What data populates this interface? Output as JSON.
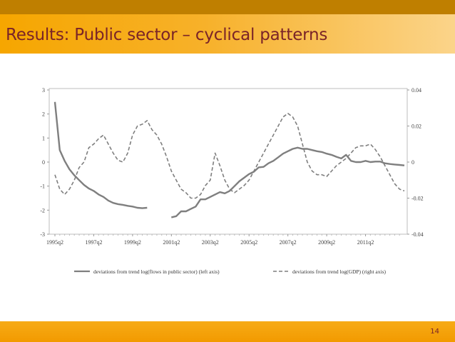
{
  "slide": {
    "title": "Results: Public sector – cyclical patterns",
    "page_number": "14"
  },
  "colors": {
    "header_dark": "#bf7f00",
    "header_light": "#f6a600",
    "title_text": "#7a2428",
    "flows_line": "#7f7f7f",
    "gdp_line": "#7f7f7f"
  },
  "chart_data": {
    "type": "line",
    "left_axis": {
      "ylim": [
        -3,
        3
      ],
      "ticks": [
        "3",
        "2",
        "1",
        "0",
        "-1",
        "-2",
        "-3"
      ]
    },
    "right_axis": {
      "ylim": [
        -0.04,
        0.04
      ],
      "ticks": [
        "0.04",
        "0.02",
        "0",
        "-0.02",
        "-0.04"
      ]
    },
    "x_tick_labels": [
      "1995q2",
      "1997q2",
      "1999q2",
      "2001q2",
      "2003q2",
      "2005q2",
      "2007q2",
      "2009q2",
      "2011q2"
    ],
    "x_range_quarters": [
      0,
      72
    ],
    "series": [
      {
        "name": "deviations from trend log(flows in public sector) (left axis)",
        "axis": "left",
        "style": "solid",
        "segments": [
          {
            "x": [
              0,
              1,
              2,
              3,
              4,
              5,
              6,
              7,
              8,
              9,
              10,
              11,
              12,
              13,
              14,
              15,
              16,
              17,
              18,
              19
            ],
            "y": [
              2.5,
              0.5,
              0.05,
              -0.3,
              -0.55,
              -0.75,
              -0.95,
              -1.1,
              -1.2,
              -1.35,
              -1.45,
              -1.6,
              -1.7,
              -1.75,
              -1.78,
              -1.82,
              -1.85,
              -1.9,
              -1.92,
              -1.9
            ]
          },
          {
            "x": [
              24,
              25,
              26,
              27,
              28,
              29,
              30,
              31,
              32,
              33,
              34,
              35,
              36,
              37,
              38,
              39,
              40,
              41,
              42,
              43,
              44,
              45,
              46,
              47,
              48,
              49,
              50,
              51,
              52,
              53,
              54,
              55,
              56,
              57,
              58,
              59,
              60,
              61,
              62,
              63,
              64,
              65,
              66,
              67,
              68,
              69,
              70,
              71,
              72
            ],
            "y": [
              -2.3,
              -2.25,
              -2.05,
              -2.05,
              -1.95,
              -1.85,
              -1.55,
              -1.55,
              -1.45,
              -1.35,
              -1.25,
              -1.3,
              -1.2,
              -1.0,
              -0.8,
              -0.65,
              -0.5,
              -0.4,
              -0.22,
              -0.2,
              -0.05,
              0.05,
              0.2,
              0.35,
              0.45,
              0.55,
              0.6,
              0.55,
              0.55,
              0.5,
              0.45,
              0.42,
              0.35,
              0.3,
              0.22,
              0.15,
              0.3,
              0.05,
              0.0,
              0.0,
              0.05,
              0.0,
              0.02,
              0.02,
              -0.05,
              -0.08,
              -0.1,
              -0.12,
              -0.14
            ]
          }
        ]
      },
      {
        "name": "deviations from trend log(GDP) (right axis)",
        "axis": "right",
        "style": "dashed",
        "segments": [
          {
            "x": [
              0,
              1,
              2,
              3,
              4,
              5,
              6,
              7,
              8,
              9,
              10,
              11,
              12,
              13,
              14,
              15,
              16,
              17,
              18,
              19,
              20,
              21,
              22,
              23,
              24,
              25,
              26,
              27,
              28,
              29,
              30,
              31,
              32,
              33,
              34,
              35,
              36,
              37,
              38,
              39,
              40,
              41,
              42,
              43,
              44,
              45,
              46,
              47,
              48,
              49,
              50,
              51,
              52,
              53,
              54,
              55,
              56,
              57,
              58,
              59,
              60,
              61,
              62,
              63,
              64,
              65,
              66,
              67,
              68,
              69,
              70,
              71,
              72
            ],
            "y": [
              -0.007,
              -0.015,
              -0.018,
              -0.015,
              -0.01,
              -0.003,
              0.0,
              0.008,
              0.01,
              0.013,
              0.015,
              0.01,
              0.005,
              0.001,
              0.0,
              0.005,
              0.015,
              0.02,
              0.021,
              0.023,
              0.018,
              0.015,
              0.01,
              0.003,
              -0.005,
              -0.01,
              -0.015,
              -0.017,
              -0.02,
              -0.02,
              -0.018,
              -0.013,
              -0.01,
              0.005,
              -0.002,
              -0.01,
              -0.015,
              -0.017,
              -0.015,
              -0.013,
              -0.01,
              -0.005,
              0.0,
              0.005,
              0.01,
              0.015,
              0.02,
              0.025,
              0.027,
              0.025,
              0.02,
              0.01,
              0.0,
              -0.005,
              -0.007,
              -0.007,
              -0.008,
              -0.005,
              -0.002,
              0.0,
              0.002,
              0.005,
              0.008,
              0.009,
              0.009,
              0.01,
              0.007,
              0.003,
              -0.002,
              -0.007,
              -0.012,
              -0.015,
              -0.016
            ]
          }
        ]
      }
    ]
  }
}
